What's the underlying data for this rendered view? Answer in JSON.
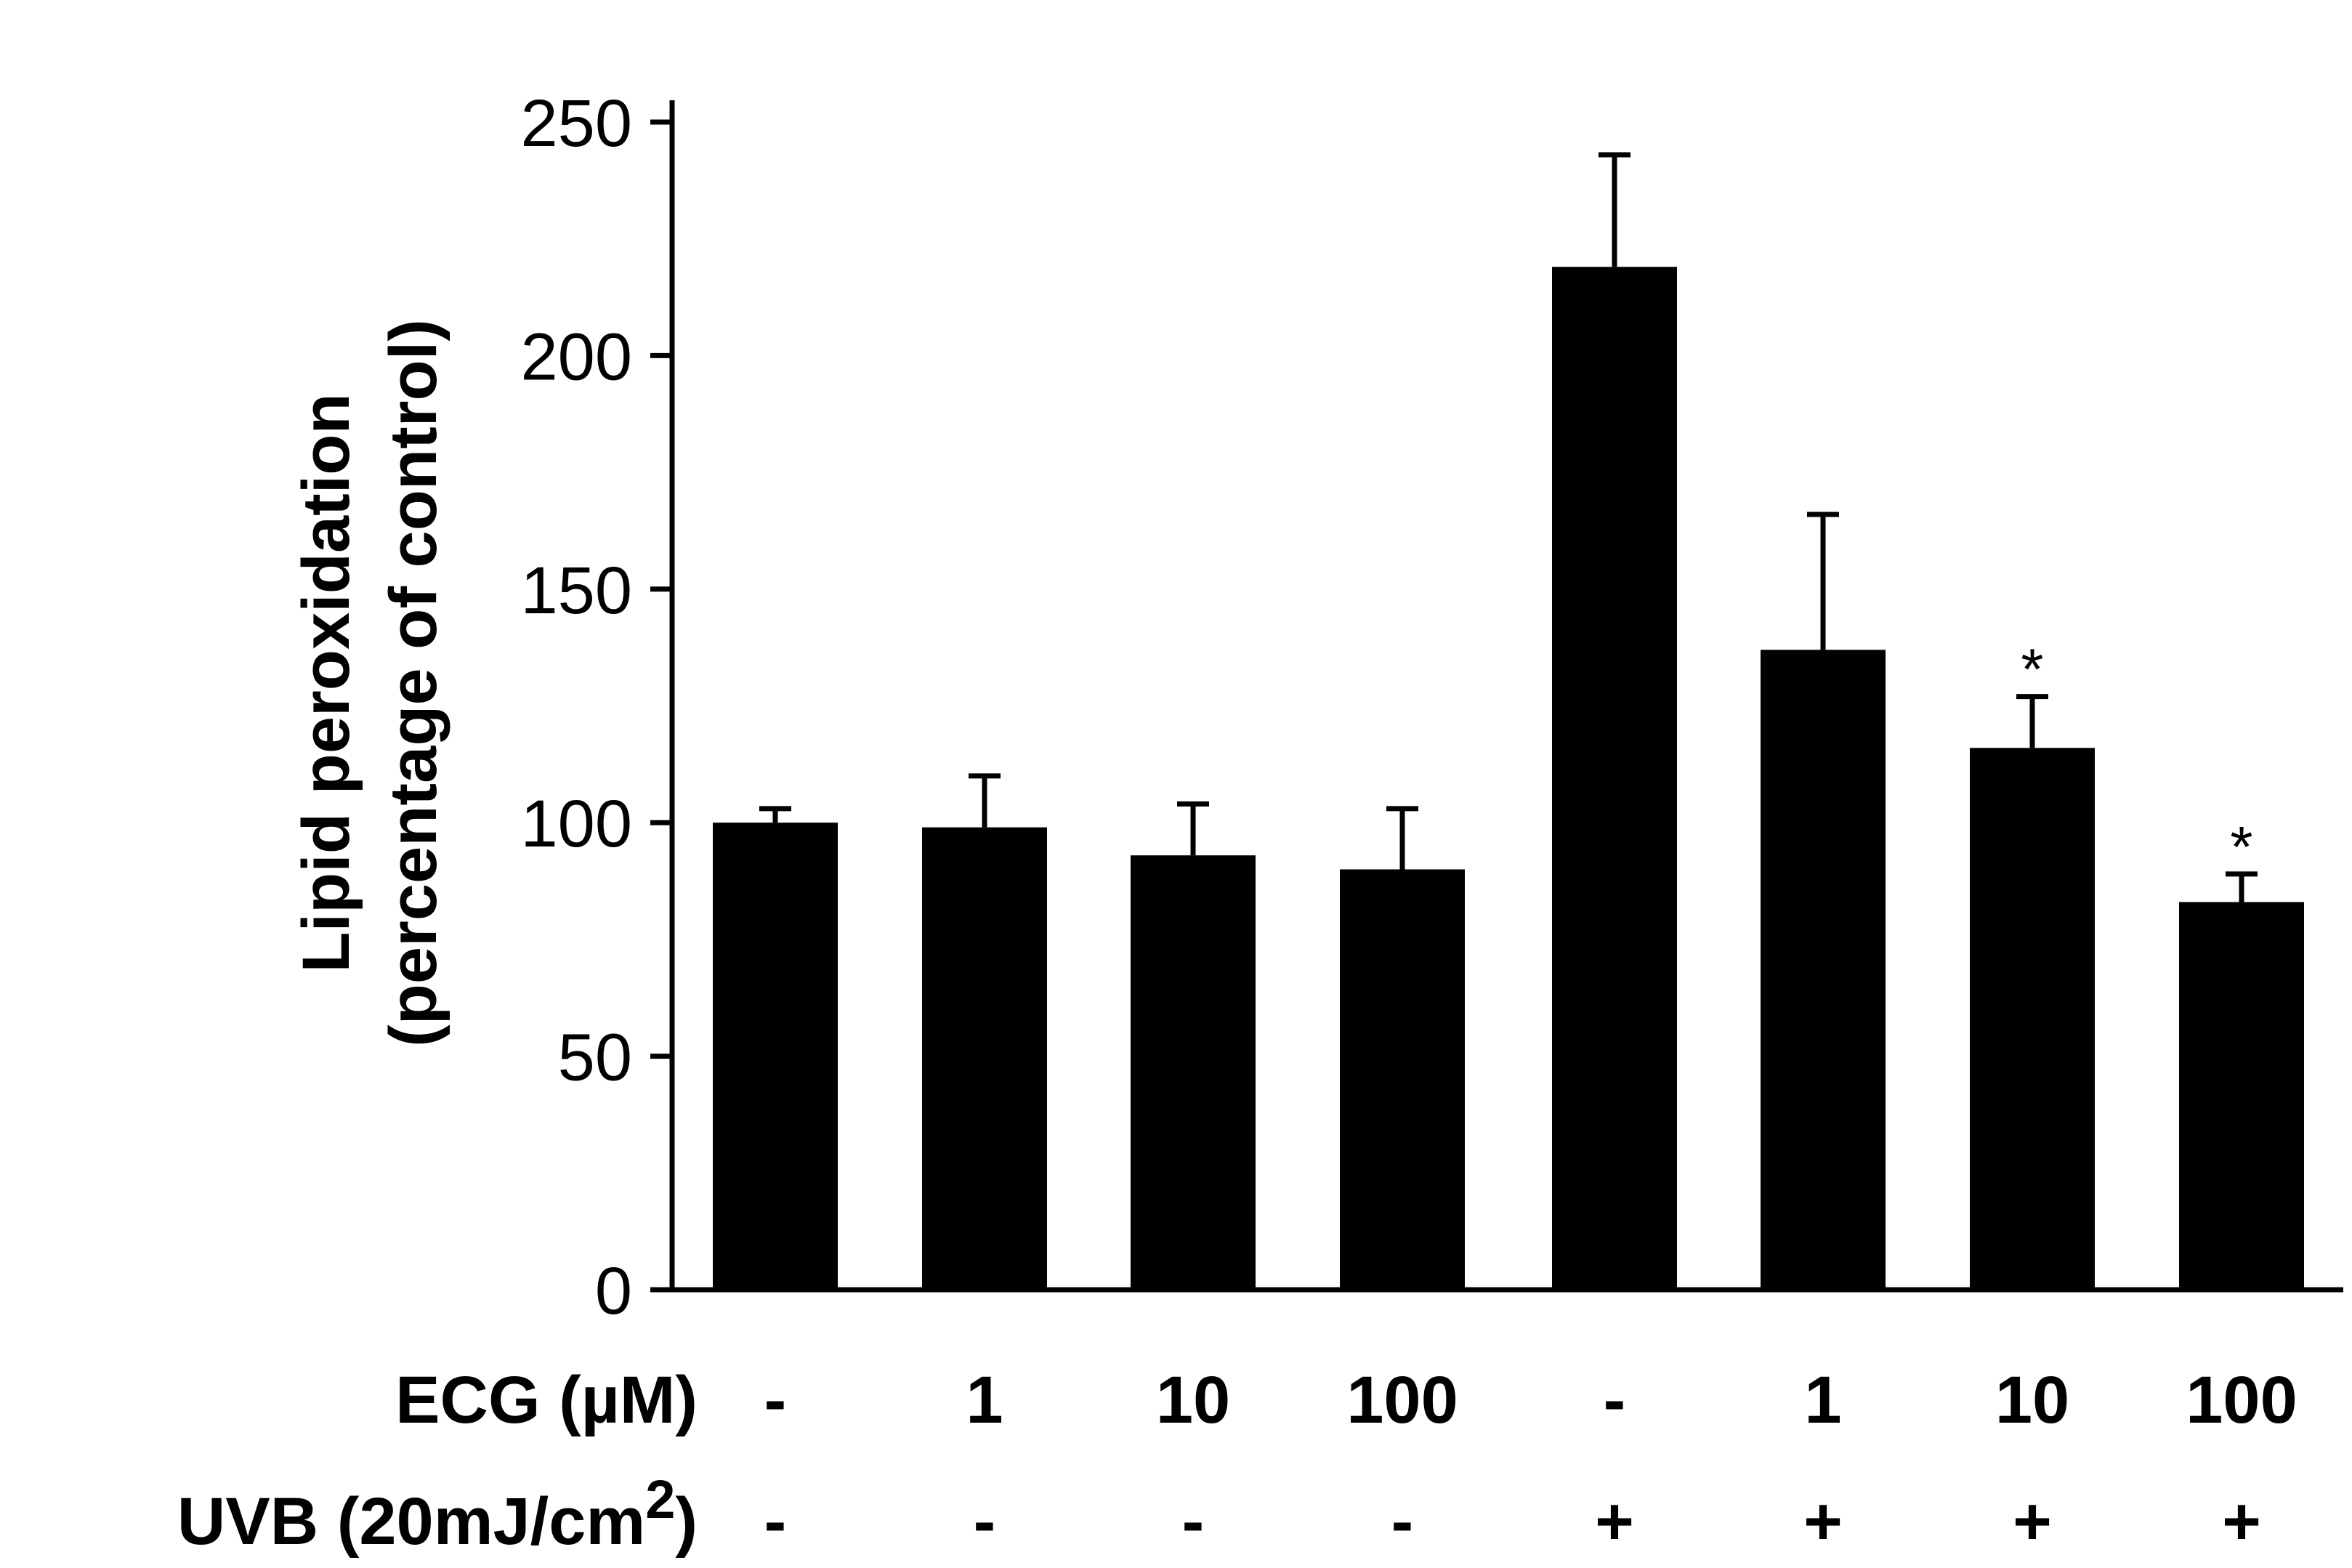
{
  "chart_data": {
    "type": "bar",
    "title": "",
    "xlabel": "",
    "ylabel": "Lipid peroxidation",
    "ylabel_line2": "(percentage of control)",
    "ylim": [
      0,
      250
    ],
    "yticks": [
      0,
      50,
      100,
      150,
      200,
      250
    ],
    "colors": {
      "bar": "#000000",
      "axis": "#000000"
    },
    "series": [
      {
        "name": "Lipid peroxidation",
        "values": [
          100,
          99,
          93,
          90,
          219,
          137,
          116,
          83
        ],
        "errors": [
          3,
          11,
          11,
          13,
          24,
          29,
          11,
          6
        ],
        "significance": [
          "",
          "",
          "",
          "",
          "",
          "",
          "*",
          "*"
        ]
      }
    ],
    "row_labels": {
      "ecg": "ECG (µM)",
      "uvb_prefix": "UVB (20mJ/cm",
      "uvb_sup": "2",
      "uvb_suffix": ")"
    },
    "categories": {
      "ecg": [
        "-",
        "1",
        "10",
        "100",
        "-",
        "1",
        "10",
        "100"
      ],
      "uvb": [
        "-",
        "-",
        "-",
        "-",
        "+",
        "+",
        "+",
        "+"
      ]
    }
  }
}
